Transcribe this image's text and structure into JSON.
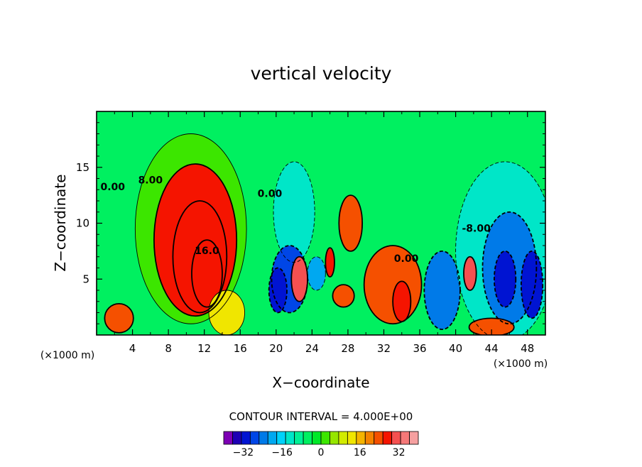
{
  "chart_data": {
    "type": "contour",
    "title": "vertical velocity",
    "xlabel": "X−coordinate",
    "ylabel": "Z−coordinate",
    "x_unit": "(×1000 m)",
    "y_unit": "(×1000 m)",
    "xlim": [
      0,
      50
    ],
    "ylim": [
      0,
      20
    ],
    "x_ticks": [
      4,
      8,
      12,
      16,
      20,
      24,
      28,
      32,
      36,
      40,
      44,
      48
    ],
    "y_ticks": [
      5,
      10,
      15
    ],
    "contour_interval_text": "CONTOUR INTERVAL = 4.000E+00",
    "contour_labels": [
      {
        "text": "0.00",
        "x": 1.8,
        "y": 13.2
      },
      {
        "text": "8.00",
        "x": 6.0,
        "y": 13.8
      },
      {
        "text": "16.0",
        "x": 12.3,
        "y": 7.5
      },
      {
        "text": "0.00",
        "x": 19.3,
        "y": 12.6
      },
      {
        "text": "0.00",
        "x": 34.5,
        "y": 6.8
      },
      {
        "text": "-8.00",
        "x": 42.3,
        "y": 9.5
      }
    ],
    "colorbar": {
      "colors": [
        "#7d00b4",
        "#1e00b4",
        "#0014d2",
        "#0046e6",
        "#007ae8",
        "#00a8f0",
        "#00d2fa",
        "#00e6c8",
        "#00f096",
        "#00f060",
        "#00e828",
        "#3ce600",
        "#96e600",
        "#d2eb00",
        "#f0e600",
        "#f5b400",
        "#f58200",
        "#f55000",
        "#f51400",
        "#f55050",
        "#f57878",
        "#f5a0a0"
      ],
      "tick_labels": [
        "−32",
        "−16",
        "0",
        "16",
        "32"
      ],
      "tick_values": [
        -32,
        -16,
        0,
        16,
        32
      ],
      "range": [
        -40,
        40
      ]
    },
    "blobs": [
      {
        "x": 10.5,
        "y": 9.5,
        "rx": 6.2,
        "ry": 8.5,
        "v": 0.5
      },
      {
        "x": 11.0,
        "y": 8.5,
        "rx": 4.6,
        "ry": 6.8,
        "v": 6.5
      },
      {
        "x": 11.5,
        "y": 7.0,
        "rx": 3.0,
        "ry": 5.0,
        "v": 6.5
      },
      {
        "x": 12.3,
        "y": 5.5,
        "rx": 1.7,
        "ry": 3.0,
        "v": 7.0
      },
      {
        "x": 2.5,
        "y": 1.5,
        "rx": 1.6,
        "ry": 1.3,
        "v": 6.0
      },
      {
        "x": 14.5,
        "y": 2.0,
        "rx": 2.0,
        "ry": 2.0,
        "v": 3.0
      },
      {
        "x": 22.0,
        "y": 11.0,
        "rx": 2.3,
        "ry": 4.5,
        "v": -3.0
      },
      {
        "x": 21.5,
        "y": 5.0,
        "rx": 2.0,
        "ry": 3.0,
        "v": -7.0
      },
      {
        "x": 20.2,
        "y": 4.0,
        "rx": 1.0,
        "ry": 2.0,
        "v": -8.0
      },
      {
        "x": 22.6,
        "y": 5.0,
        "rx": 0.9,
        "ry": 2.0,
        "v": 8.0
      },
      {
        "x": 24.5,
        "y": 5.5,
        "rx": 1.0,
        "ry": 1.5,
        "v": -5.0
      },
      {
        "x": 26.0,
        "y": 6.5,
        "rx": 0.5,
        "ry": 1.3,
        "v": 7.0
      },
      {
        "x": 28.3,
        "y": 10.0,
        "rx": 1.3,
        "ry": 2.5,
        "v": 6.0
      },
      {
        "x": 27.5,
        "y": 3.5,
        "rx": 1.2,
        "ry": 1.0,
        "v": 6.0
      },
      {
        "x": 33.0,
        "y": 4.5,
        "rx": 3.2,
        "ry": 3.5,
        "v": 6.0
      },
      {
        "x": 34.0,
        "y": 3.0,
        "rx": 1.0,
        "ry": 1.8,
        "v": 7.0
      },
      {
        "x": 38.5,
        "y": 4.0,
        "rx": 2.0,
        "ry": 3.5,
        "v": -6.0
      },
      {
        "x": 45.5,
        "y": 7.5,
        "rx": 5.5,
        "ry": 8.0,
        "v": -3.5
      },
      {
        "x": 46.0,
        "y": 6.0,
        "rx": 3.0,
        "ry": 5.0,
        "v": -6.0
      },
      {
        "x": 45.5,
        "y": 5.0,
        "rx": 1.2,
        "ry": 2.5,
        "v": -8.0
      },
      {
        "x": 41.6,
        "y": 5.5,
        "rx": 0.7,
        "ry": 1.5,
        "v": 8.0
      },
      {
        "x": 48.5,
        "y": 4.5,
        "rx": 1.2,
        "ry": 3.0,
        "v": -8.0
      },
      {
        "x": 44.0,
        "y": 0.7,
        "rx": 2.5,
        "ry": 0.8,
        "v": 6.0
      }
    ]
  }
}
